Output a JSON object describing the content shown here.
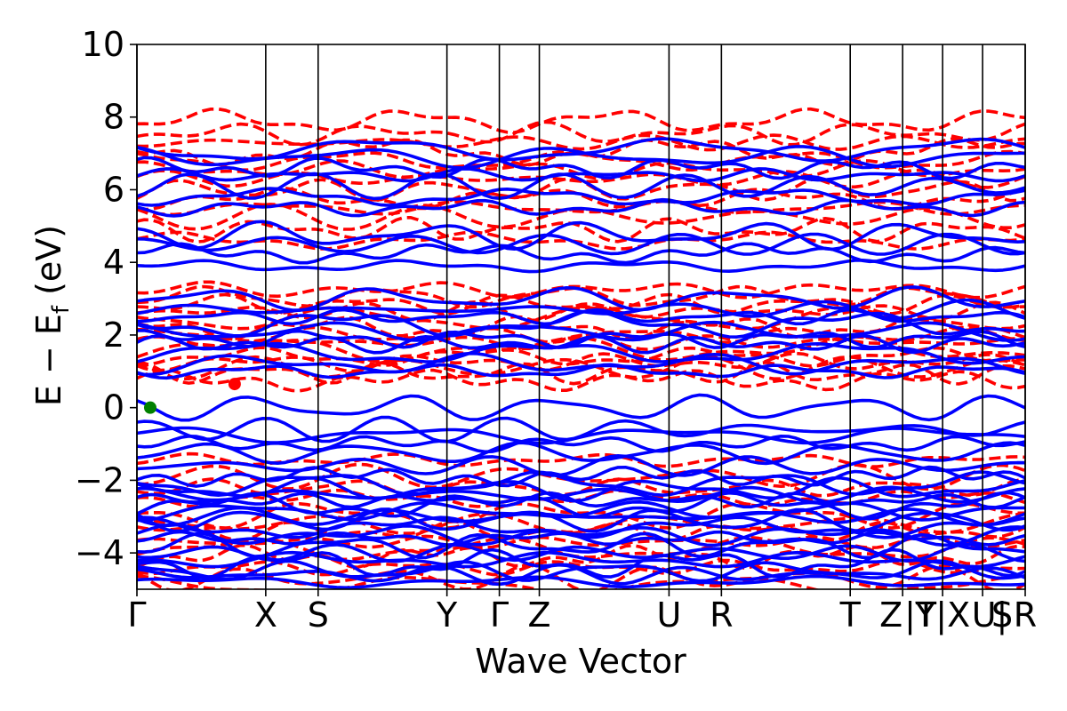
{
  "chart_data": {
    "type": "line",
    "title": "",
    "xlabel": "Wave Vector",
    "ylabel": "E − E",
    "ylabel_subscript": "f",
    "ylabel_unit": "(eV)",
    "ylim": [
      -5,
      10
    ],
    "yticks": [
      10,
      8,
      6,
      4,
      2,
      0,
      -2,
      -4
    ],
    "ytick_labels": [
      "10",
      "8",
      "6",
      "4",
      "2",
      "0",
      "−2",
      "−4"
    ],
    "k_path": {
      "labels": [
        "Γ",
        "X",
        "S",
        "Y",
        "Γ",
        "Z",
        "U",
        "R",
        "T",
        "Z",
        "|T",
        "Y|X",
        "U|",
        "S",
        "R"
      ],
      "positions": [
        0,
        0.145,
        0.204,
        0.349,
        0.408,
        0.453,
        0.599,
        0.658,
        0.803,
        0.862,
        0.862,
        0.907,
        0.952,
        0.952,
        1.0
      ],
      "dividers": [
        0,
        0.145,
        0.204,
        0.349,
        0.408,
        0.453,
        0.599,
        0.658,
        0.803,
        0.862,
        0.907,
        0.952,
        1.0
      ]
    },
    "series": [
      {
        "style": "solid",
        "color": "#0000ff",
        "bands": [
          -4.8,
          -4.6,
          -4.5,
          -4.3,
          -4.2,
          -4.0,
          -3.8,
          -3.6,
          -3.5,
          -3.3,
          -3.1,
          -3.0,
          -2.85,
          -2.7,
          -2.55,
          -2.4,
          -2.25,
          -2.1,
          -1.9,
          -1.6,
          -1.25,
          -1.0,
          -0.75,
          -0.6,
          0.0,
          1.0,
          1.2,
          1.5,
          1.75,
          1.9,
          2.1,
          2.3,
          2.5,
          2.7,
          3.0,
          3.9,
          4.25,
          4.5,
          4.75,
          5.5,
          5.8,
          6.1,
          6.4,
          6.6,
          6.9,
          7.1
        ]
      },
      {
        "style": "dashed",
        "color": "#ff0000",
        "bands": [
          -4.9,
          -4.7,
          -4.4,
          -4.1,
          -3.9,
          -3.7,
          -3.4,
          -3.2,
          -2.95,
          -2.5,
          -2.2,
          -1.9,
          -1.45,
          0.75,
          0.95,
          1.1,
          1.25,
          1.4,
          1.6,
          1.8,
          2.0,
          2.2,
          2.45,
          2.65,
          2.85,
          3.05,
          3.25,
          4.6,
          4.9,
          5.25,
          5.5,
          5.75,
          6.0,
          6.3,
          6.55,
          6.8,
          7.05,
          7.3,
          7.55,
          7.9
        ]
      }
    ],
    "markers": [
      {
        "label": "VBM",
        "x": 0.015,
        "y": 0.0,
        "color": "#008000"
      },
      {
        "label": "CBM",
        "x": 0.11,
        "y": 0.65,
        "color": "#ff0000"
      }
    ]
  }
}
